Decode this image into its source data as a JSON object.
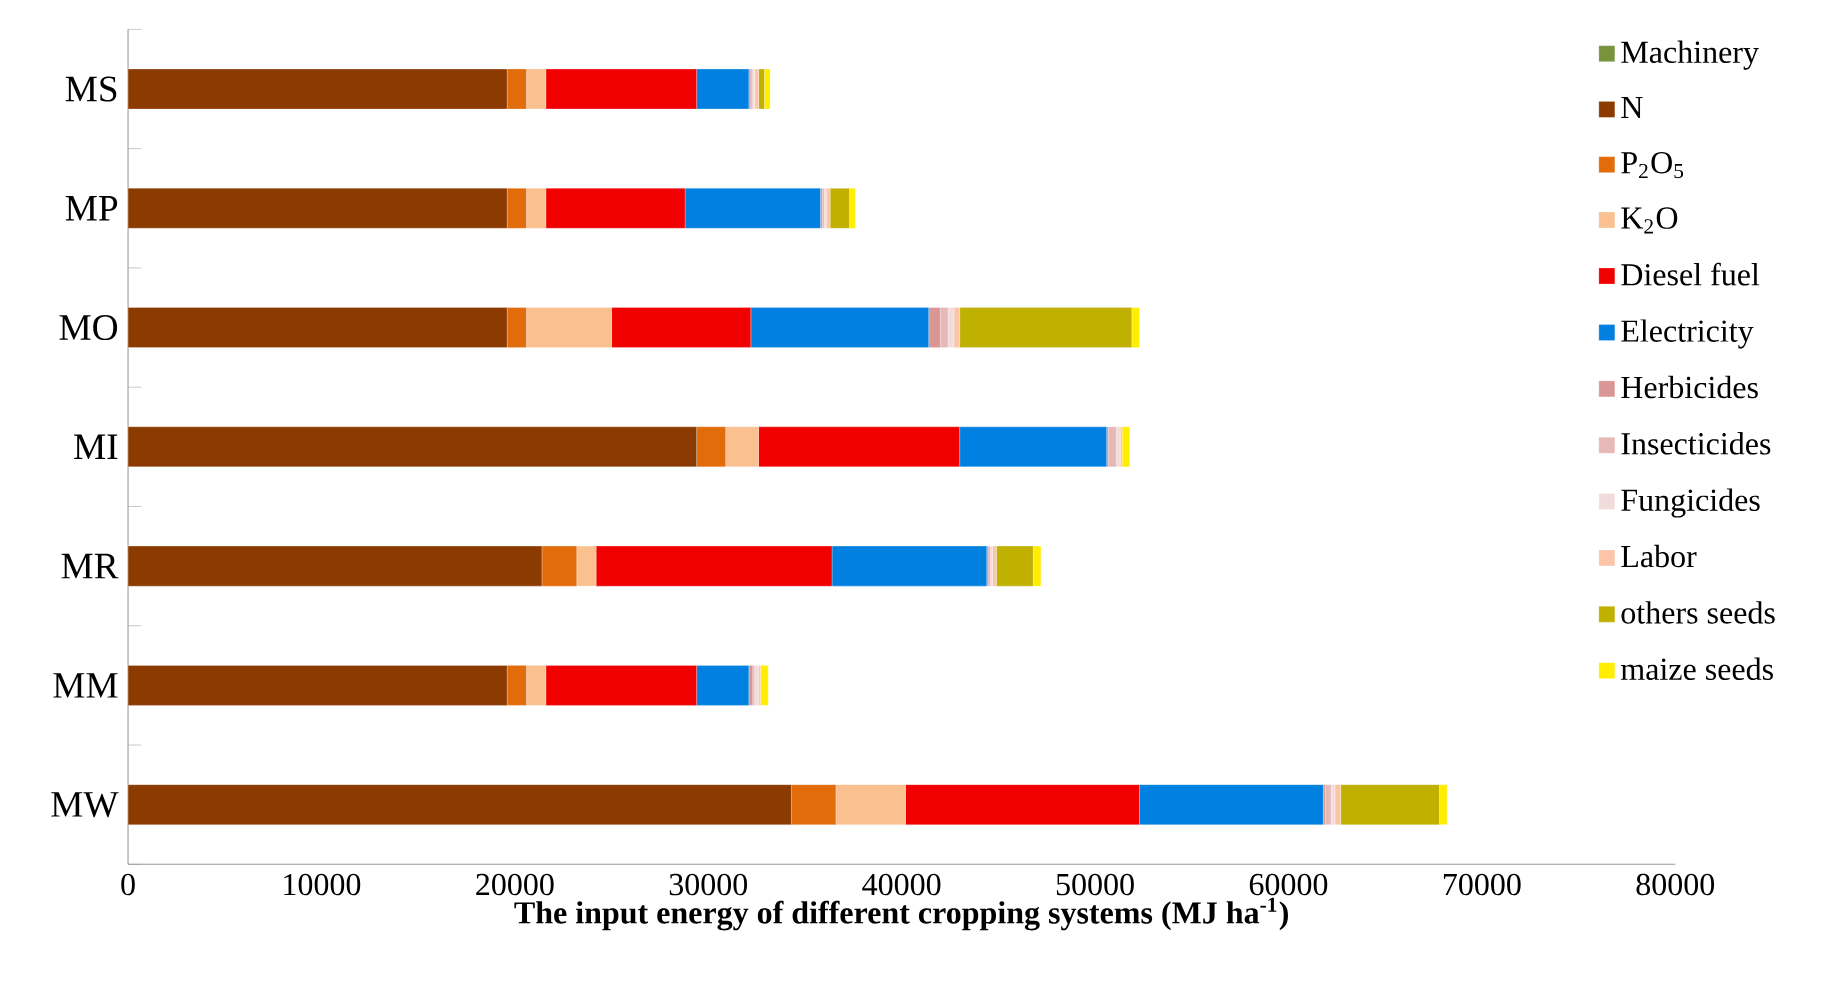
{
  "chart_data": {
    "type": "bar",
    "orientation": "horizontal",
    "stacked": true,
    "xlabel": "The input energy of different cropping systems (MJ ha$^{-1}$)",
    "categories": [
      "MS",
      "MP",
      "MO",
      "MI",
      "MR",
      "MM",
      "MW"
    ],
    "xlim": [
      0,
      80000
    ],
    "xticks": [
      0,
      10000,
      20000,
      30000,
      40000,
      50000,
      60000,
      70000,
      80000
    ],
    "grid": false,
    "legend": "right",
    "series": [
      {
        "name": "Machinery",
        "color": "#77933c",
        "values": [
          0,
          0,
          0,
          0,
          0,
          0,
          0
        ]
      },
      {
        "name": "N",
        "color": "#8b3a00",
        "values": [
          19600,
          19600,
          19600,
          29400,
          21400,
          19600,
          34300
        ]
      },
      {
        "name": "P$_{2}$O$_{5}$",
        "color": "#e26b0a",
        "values": [
          1000,
          1000,
          1000,
          1500,
          1800,
          1000,
          2300
        ]
      },
      {
        "name": "K$_{2}$O",
        "color": "#fac090",
        "values": [
          1000,
          1000,
          4400,
          1700,
          1000,
          1000,
          3600
        ]
      },
      {
        "name": "Diesel fuel",
        "color": "#f00000",
        "values": [
          7800,
          7200,
          7200,
          10400,
          12200,
          7800,
          12100
        ]
      },
      {
        "name": "Electricity",
        "color": "#0080e0",
        "values": [
          2700,
          7000,
          9200,
          7600,
          8000,
          2700,
          9500
        ]
      },
      {
        "name": "Herbicides",
        "color": "#da9694",
        "values": [
          100,
          100,
          600,
          100,
          100,
          200,
          100
        ]
      },
      {
        "name": "Insecticides",
        "color": "#e6b9b8",
        "values": [
          100,
          100,
          400,
          400,
          100,
          100,
          300
        ]
      },
      {
        "name": "Fungicides",
        "color": "#f2dcdb",
        "values": [
          100,
          100,
          300,
          200,
          100,
          200,
          200
        ]
      },
      {
        "name": "Labor",
        "color": "#fcc5a8",
        "values": [
          200,
          200,
          300,
          100,
          200,
          100,
          300
        ]
      },
      {
        "name": "others seeds",
        "color": "#c0b000",
        "values": [
          300,
          1000,
          8900,
          0,
          1900,
          0,
          5100
        ]
      },
      {
        "name": "maize seeds",
        "color": "#ffee00",
        "values": [
          300,
          300,
          400,
          400,
          400,
          400,
          400
        ]
      }
    ]
  }
}
